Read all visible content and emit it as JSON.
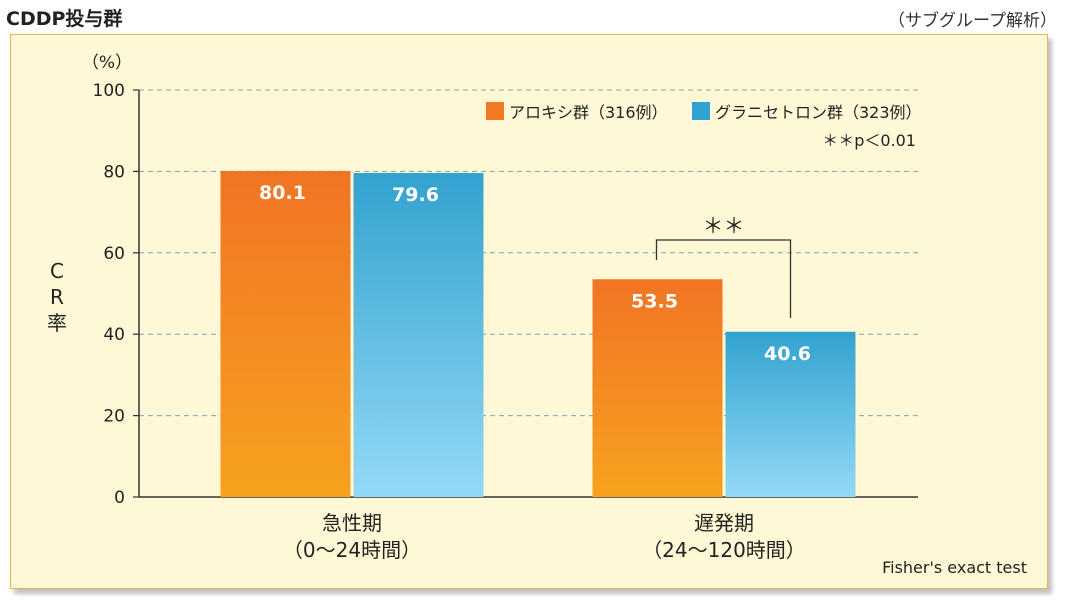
{
  "header": {
    "title": "CDDP投与群",
    "subtitle": "（サブグループ解析）"
  },
  "chart_data": {
    "type": "bar",
    "categories": [
      "急性期\n（0〜24時間）",
      "遅発期\n（24〜120時間）"
    ],
    "category_lines": [
      [
        "急性期",
        "（0〜24時間）"
      ],
      [
        "遅発期",
        "（24〜120時間）"
      ]
    ],
    "series": [
      {
        "name": "アロキシ群（316例）",
        "values": [
          80.1,
          53.5
        ],
        "color": "#f07a24"
      },
      {
        "name": "グラニセトロン群（323例）",
        "values": [
          79.6,
          40.6
        ],
        "color": "#3aa8d2"
      }
    ],
    "data_labels": [
      "80.1",
      "79.6",
      "53.5",
      "40.6"
    ],
    "ylabel": "CR率",
    "y_unit": "（%）",
    "ylim": [
      0,
      100
    ],
    "yticks": [
      0,
      20,
      40,
      60,
      80,
      100
    ],
    "grid": true,
    "legend_position": "top-right",
    "significance_note": "＊＊p＜0.01",
    "significance_marker": "＊＊",
    "significance_category": 1,
    "footer_note": "Fisher's exact test"
  }
}
